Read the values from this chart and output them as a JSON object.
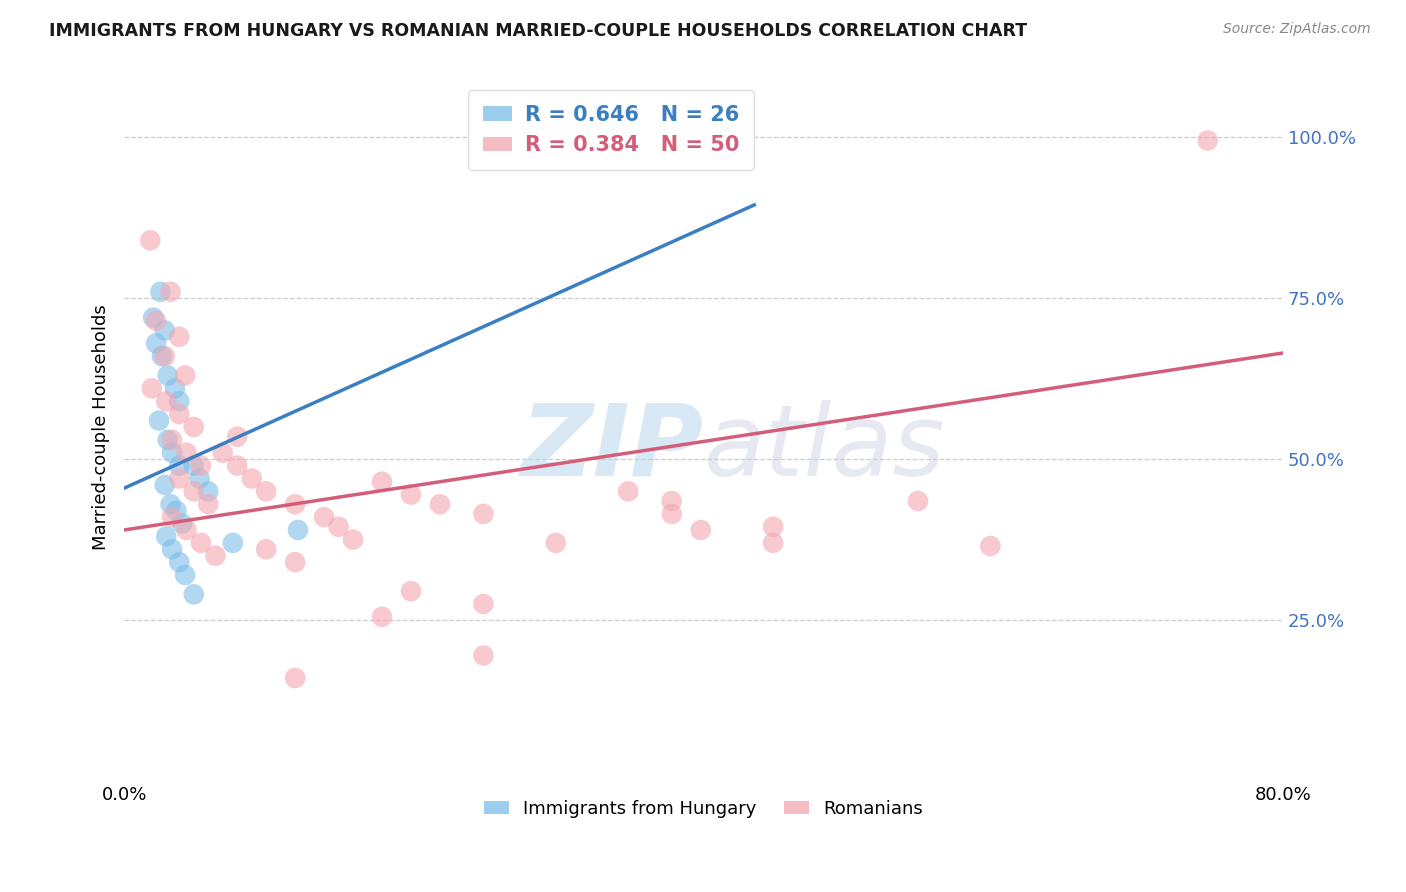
{
  "title": "IMMIGRANTS FROM HUNGARY VS ROMANIAN MARRIED-COUPLE HOUSEHOLDS CORRELATION CHART",
  "source": "Source: ZipAtlas.com",
  "ylabel": "Married-couple Households",
  "xlim": [
    0.0,
    0.8
  ],
  "ylim": [
    0.0,
    1.1
  ],
  "xticklabels": [
    "0.0%",
    "80.0%"
  ],
  "ytick_values": [
    0.25,
    0.5,
    0.75,
    1.0
  ],
  "background_color": "#ffffff",
  "grid_color": "#cccccc",
  "watermark_zip": "ZIP",
  "watermark_atlas": "atlas",
  "legend_r_hungary": "R = 0.646",
  "legend_n_hungary": "N = 26",
  "legend_r_romanian": "R = 0.384",
  "legend_n_romanian": "N = 50",
  "hungary_color": "#7dbde8",
  "romanian_color": "#f4a6b0",
  "hungary_line_color": "#3a7fc1",
  "romanian_line_color": "#d45e7a",
  "ytick_color": "#4472c4",
  "hungary_scatter": [
    [
      0.02,
      0.72
    ],
    [
      0.025,
      0.76
    ],
    [
      0.028,
      0.7
    ],
    [
      0.022,
      0.68
    ],
    [
      0.026,
      0.66
    ],
    [
      0.03,
      0.63
    ],
    [
      0.035,
      0.61
    ],
    [
      0.038,
      0.59
    ],
    [
      0.024,
      0.56
    ],
    [
      0.03,
      0.53
    ],
    [
      0.033,
      0.51
    ],
    [
      0.038,
      0.49
    ],
    [
      0.028,
      0.46
    ],
    [
      0.032,
      0.43
    ],
    [
      0.036,
      0.42
    ],
    [
      0.04,
      0.4
    ],
    [
      0.029,
      0.38
    ],
    [
      0.033,
      0.36
    ],
    [
      0.038,
      0.34
    ],
    [
      0.042,
      0.32
    ],
    [
      0.048,
      0.49
    ],
    [
      0.052,
      0.47
    ],
    [
      0.058,
      0.45
    ],
    [
      0.12,
      0.39
    ],
    [
      0.075,
      0.37
    ],
    [
      0.048,
      0.29
    ]
  ],
  "romanian_scatter": [
    [
      0.018,
      0.84
    ],
    [
      0.032,
      0.76
    ],
    [
      0.022,
      0.715
    ],
    [
      0.038,
      0.69
    ],
    [
      0.028,
      0.66
    ],
    [
      0.042,
      0.63
    ],
    [
      0.019,
      0.61
    ],
    [
      0.029,
      0.59
    ],
    [
      0.038,
      0.57
    ],
    [
      0.048,
      0.55
    ],
    [
      0.033,
      0.53
    ],
    [
      0.043,
      0.51
    ],
    [
      0.053,
      0.49
    ],
    [
      0.038,
      0.47
    ],
    [
      0.048,
      0.45
    ],
    [
      0.058,
      0.43
    ],
    [
      0.033,
      0.41
    ],
    [
      0.043,
      0.39
    ],
    [
      0.053,
      0.37
    ],
    [
      0.063,
      0.35
    ],
    [
      0.068,
      0.51
    ],
    [
      0.078,
      0.49
    ],
    [
      0.088,
      0.47
    ],
    [
      0.098,
      0.45
    ],
    [
      0.118,
      0.43
    ],
    [
      0.138,
      0.41
    ],
    [
      0.148,
      0.395
    ],
    [
      0.158,
      0.375
    ],
    [
      0.178,
      0.465
    ],
    [
      0.198,
      0.445
    ],
    [
      0.218,
      0.43
    ],
    [
      0.248,
      0.415
    ],
    [
      0.098,
      0.36
    ],
    [
      0.118,
      0.34
    ],
    [
      0.348,
      0.45
    ],
    [
      0.378,
      0.435
    ],
    [
      0.398,
      0.39
    ],
    [
      0.448,
      0.37
    ],
    [
      0.198,
      0.295
    ],
    [
      0.248,
      0.275
    ],
    [
      0.298,
      0.37
    ],
    [
      0.178,
      0.255
    ],
    [
      0.248,
      0.195
    ],
    [
      0.118,
      0.16
    ],
    [
      0.078,
      0.535
    ],
    [
      0.748,
      0.995
    ],
    [
      0.378,
      0.415
    ],
    [
      0.448,
      0.395
    ],
    [
      0.548,
      0.435
    ],
    [
      0.598,
      0.365
    ]
  ],
  "hungary_trendline_x": [
    0.0,
    0.435
  ],
  "hungary_trendline_y": [
    0.455,
    0.895
  ],
  "romanian_trendline_x": [
    0.0,
    0.8
  ],
  "romanian_trendline_y": [
    0.39,
    0.665
  ]
}
